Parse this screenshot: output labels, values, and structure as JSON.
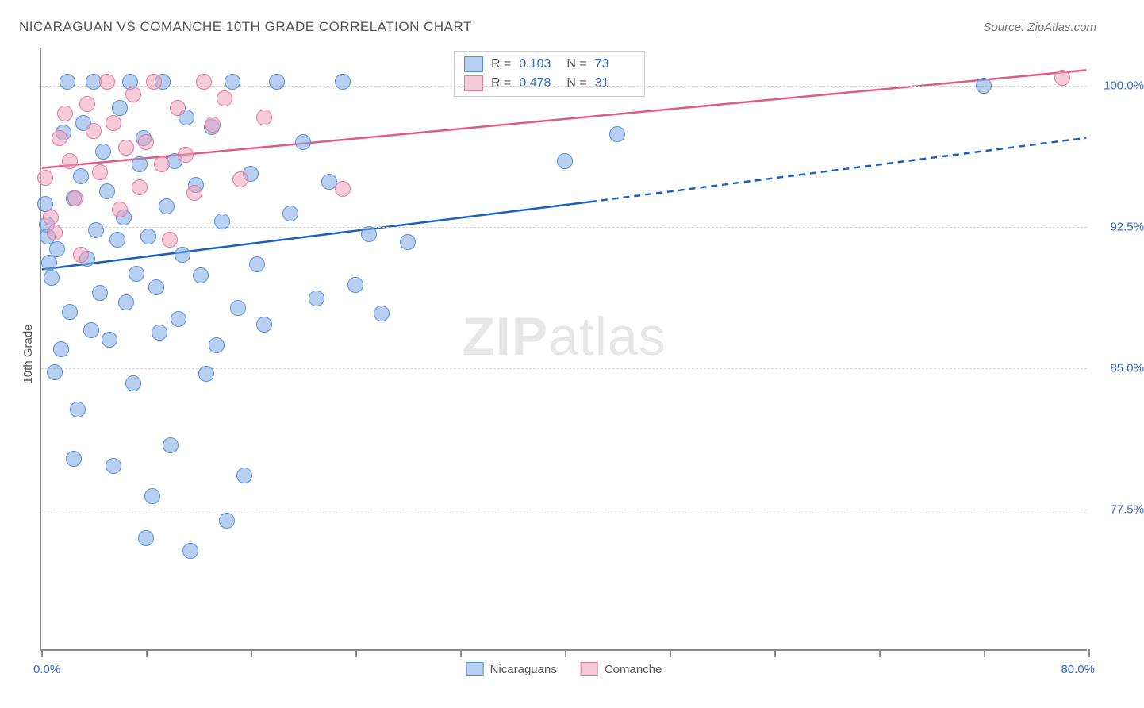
{
  "title": "NICARAGUAN VS COMANCHE 10TH GRADE CORRELATION CHART",
  "source_label": "Source:",
  "source_name": "ZipAtlas.com",
  "yaxis_title": "10th Grade",
  "watermark": {
    "bold": "ZIP",
    "rest": "atlas"
  },
  "chart": {
    "type": "scatter",
    "background_color": "#ffffff",
    "grid_color": "#d5d5d5",
    "axis_color": "#8a8a8a",
    "label_color": "#2f6bd6",
    "marker_radius": 10,
    "marker_border_width": 1.5,
    "xdomain": [
      0,
      80
    ],
    "ydomain": [
      70,
      102
    ],
    "xticks": [
      0,
      8,
      16,
      24,
      32,
      40,
      48,
      56,
      64,
      72,
      80
    ],
    "xmin_label": "0.0%",
    "xmax_label": "80.0%",
    "ygridlines": [
      77.5,
      85.0,
      92.5,
      100.0
    ],
    "ytick_labels": [
      "77.5%",
      "85.0%",
      "92.5%",
      "100.0%"
    ],
    "series": [
      {
        "name": "Nicaraguans",
        "fill": "rgba(124,169,230,0.55)",
        "stroke": "#5a8fd6",
        "line_color": "#1b5fc4",
        "line_width": 2.5,
        "trend_solid": {
          "x1": 0,
          "y1": 90.2,
          "x2": 42,
          "y2": 93.8
        },
        "trend_dash": {
          "x1": 42,
          "y1": 93.8,
          "x2": 80,
          "y2": 97.2
        },
        "points": [
          [
            0.3,
            93.7
          ],
          [
            0.4,
            92.6
          ],
          [
            0.5,
            92.0
          ],
          [
            0.6,
            90.6
          ],
          [
            0.8,
            89.8
          ],
          [
            1.0,
            84.8
          ],
          [
            1.2,
            91.3
          ],
          [
            1.5,
            86.0
          ],
          [
            1.7,
            97.5
          ],
          [
            2.0,
            100.2
          ],
          [
            2.2,
            88.0
          ],
          [
            2.5,
            94.0
          ],
          [
            2.5,
            80.2
          ],
          [
            2.8,
            82.8
          ],
          [
            3.0,
            95.2
          ],
          [
            3.2,
            98.0
          ],
          [
            3.5,
            90.8
          ],
          [
            3.8,
            87.0
          ],
          [
            4.0,
            100.2
          ],
          [
            4.2,
            92.3
          ],
          [
            4.5,
            89.0
          ],
          [
            4.7,
            96.5
          ],
          [
            5.0,
            94.4
          ],
          [
            5.2,
            86.5
          ],
          [
            5.5,
            79.8
          ],
          [
            5.8,
            91.8
          ],
          [
            6.0,
            98.8
          ],
          [
            6.3,
            93.0
          ],
          [
            6.5,
            88.5
          ],
          [
            6.8,
            100.2
          ],
          [
            7.0,
            84.2
          ],
          [
            7.3,
            90.0
          ],
          [
            7.5,
            95.8
          ],
          [
            7.8,
            97.2
          ],
          [
            8.0,
            76.0
          ],
          [
            8.2,
            92.0
          ],
          [
            8.5,
            78.2
          ],
          [
            8.8,
            89.3
          ],
          [
            9.0,
            86.9
          ],
          [
            9.3,
            100.2
          ],
          [
            9.6,
            93.6
          ],
          [
            9.9,
            80.9
          ],
          [
            10.2,
            96.0
          ],
          [
            10.5,
            87.6
          ],
          [
            10.8,
            91.0
          ],
          [
            11.1,
            98.3
          ],
          [
            11.4,
            75.3
          ],
          [
            11.8,
            94.7
          ],
          [
            12.2,
            89.9
          ],
          [
            12.6,
            84.7
          ],
          [
            13.0,
            97.8
          ],
          [
            13.4,
            86.2
          ],
          [
            13.8,
            92.8
          ],
          [
            14.2,
            76.9
          ],
          [
            14.6,
            100.2
          ],
          [
            15.0,
            88.2
          ],
          [
            15.5,
            79.3
          ],
          [
            16.0,
            95.3
          ],
          [
            16.5,
            90.5
          ],
          [
            17.0,
            87.3
          ],
          [
            18.0,
            100.2
          ],
          [
            19.0,
            93.2
          ],
          [
            20.0,
            97.0
          ],
          [
            21.0,
            88.7
          ],
          [
            22.0,
            94.9
          ],
          [
            23.0,
            100.2
          ],
          [
            24.0,
            89.4
          ],
          [
            25.0,
            92.1
          ],
          [
            26.0,
            87.9
          ],
          [
            28.0,
            91.7
          ],
          [
            40.0,
            96.0
          ],
          [
            44.0,
            97.4
          ],
          [
            72.0,
            100.0
          ]
        ]
      },
      {
        "name": "Comanche",
        "fill": "rgba(240,160,185,0.55)",
        "stroke": "#e478a0",
        "line_color": "#e05a88",
        "line_width": 2.5,
        "trend_solid": {
          "x1": 0,
          "y1": 95.6,
          "x2": 80,
          "y2": 100.8
        },
        "trend_dash": null,
        "points": [
          [
            0.3,
            95.1
          ],
          [
            0.7,
            93.0
          ],
          [
            1.0,
            92.2
          ],
          [
            1.4,
            97.2
          ],
          [
            1.8,
            98.5
          ],
          [
            2.2,
            96.0
          ],
          [
            2.6,
            94.0
          ],
          [
            3.0,
            91.0
          ],
          [
            3.5,
            99.0
          ],
          [
            4.0,
            97.6
          ],
          [
            4.5,
            95.4
          ],
          [
            5.0,
            100.2
          ],
          [
            5.5,
            98.0
          ],
          [
            6.0,
            93.4
          ],
          [
            6.5,
            96.7
          ],
          [
            7.0,
            99.5
          ],
          [
            7.5,
            94.6
          ],
          [
            8.0,
            97.0
          ],
          [
            8.6,
            100.2
          ],
          [
            9.2,
            95.8
          ],
          [
            9.8,
            91.8
          ],
          [
            10.4,
            98.8
          ],
          [
            11.0,
            96.3
          ],
          [
            11.7,
            94.3
          ],
          [
            12.4,
            100.2
          ],
          [
            13.1,
            97.9
          ],
          [
            14.0,
            99.3
          ],
          [
            15.2,
            95.0
          ],
          [
            17.0,
            98.3
          ],
          [
            23.0,
            94.5
          ],
          [
            78.0,
            100.4
          ]
        ]
      }
    ]
  },
  "statbox": {
    "rows": [
      {
        "swatch_fill": "rgba(124,169,230,0.55)",
        "swatch_stroke": "#5a8fd6",
        "r_label": "R =",
        "r_value": "0.103",
        "n_label": "N =",
        "n_value": "73"
      },
      {
        "swatch_fill": "rgba(240,160,185,0.55)",
        "swatch_stroke": "#e478a0",
        "r_label": "R =",
        "r_value": "0.478",
        "n_label": "N =",
        "n_value": "31"
      }
    ]
  },
  "legend": [
    {
      "swatch_fill": "rgba(124,169,230,0.55)",
      "swatch_stroke": "#5a8fd6",
      "label": "Nicaraguans"
    },
    {
      "swatch_fill": "rgba(240,160,185,0.55)",
      "swatch_stroke": "#e478a0",
      "label": "Comanche"
    }
  ]
}
